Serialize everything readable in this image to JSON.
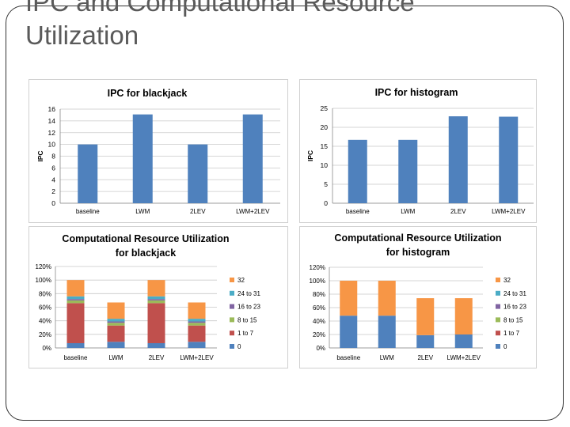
{
  "slide": {
    "title_line1": "IPC and Computational Resource",
    "title_line2": "Utilization"
  },
  "chart_data": [
    {
      "type": "bar",
      "title": "IPC for blackjack",
      "ylabel": "IPC",
      "categories": [
        "baseline",
        "LWM",
        "2LEV",
        "LWM+2LEV"
      ],
      "values": [
        10,
        15.1,
        10,
        15.1
      ],
      "ylim": [
        0,
        16
      ],
      "yticks": [
        "0",
        "2",
        "4",
        "6",
        "8",
        "10",
        "12",
        "14",
        "16"
      ],
      "grid": true,
      "color": "#4f81bd"
    },
    {
      "type": "bar",
      "title": "IPC for histogram",
      "ylabel": "IPC",
      "categories": [
        "baseline",
        "LWM",
        "2LEV",
        "LWM+2LEV"
      ],
      "values": [
        16.7,
        16.7,
        22.9,
        22.8
      ],
      "ylim": [
        0,
        25
      ],
      "yticks": [
        "0",
        "5",
        "10",
        "15",
        "20",
        "25"
      ],
      "grid": true,
      "color": "#4f81bd"
    },
    {
      "type": "bar",
      "stacked": true,
      "title": "Computational Resource Utilization for blackjack",
      "title_lines": [
        "Computational Resource Utilization",
        "for blackjack"
      ],
      "categories": [
        "baseline",
        "LWM",
        "2LEV",
        "LWM+2LEV"
      ],
      "yticks": [
        "0%",
        "20%",
        "40%",
        "60%",
        "80%",
        "100%",
        "120%"
      ],
      "ylim": [
        0,
        120
      ],
      "grid": true,
      "legend": "right",
      "series": [
        {
          "name": "0",
          "color": "#4f81bd",
          "values": [
            7,
            9,
            7,
            9
          ]
        },
        {
          "name": "1 to 7",
          "color": "#c0504d",
          "values": [
            59,
            24,
            59,
            24
          ]
        },
        {
          "name": "8 to 15",
          "color": "#9bbb59",
          "values": [
            4,
            4,
            4,
            4
          ]
        },
        {
          "name": "16 to 23",
          "color": "#8064a2",
          "values": [
            2,
            2,
            2,
            2
          ]
        },
        {
          "name": "24 to 31",
          "color": "#4bacc6",
          "values": [
            4,
            4,
            4,
            4
          ]
        },
        {
          "name": "32",
          "color": "#f79646",
          "values": [
            24,
            24,
            24,
            24
          ]
        }
      ]
    },
    {
      "type": "bar",
      "stacked": true,
      "title": "Computational Resource Utilization for histogram",
      "title_lines": [
        "Computational Resource Utilization",
        "for histogram"
      ],
      "categories": [
        "baseline",
        "LWM",
        "2LEV",
        "LWM+2LEV"
      ],
      "yticks": [
        "0%",
        "20%",
        "40%",
        "60%",
        "80%",
        "100%",
        "120%"
      ],
      "ylim": [
        0,
        120
      ],
      "grid": true,
      "legend": "right",
      "series": [
        {
          "name": "0",
          "color": "#4f81bd",
          "values": [
            48,
            48,
            19,
            20
          ]
        },
        {
          "name": "1 to 7",
          "color": "#c0504d",
          "values": [
            0,
            0,
            0,
            0
          ]
        },
        {
          "name": "8 to 15",
          "color": "#9bbb59",
          "values": [
            0,
            0,
            0,
            0
          ]
        },
        {
          "name": "16 to 23",
          "color": "#8064a2",
          "values": [
            0,
            0,
            0,
            0
          ]
        },
        {
          "name": "24 to 31",
          "color": "#4bacc6",
          "values": [
            0,
            0,
            0,
            0
          ]
        },
        {
          "name": "32",
          "color": "#f79646",
          "values": [
            52,
            52,
            55,
            54
          ]
        }
      ]
    }
  ]
}
